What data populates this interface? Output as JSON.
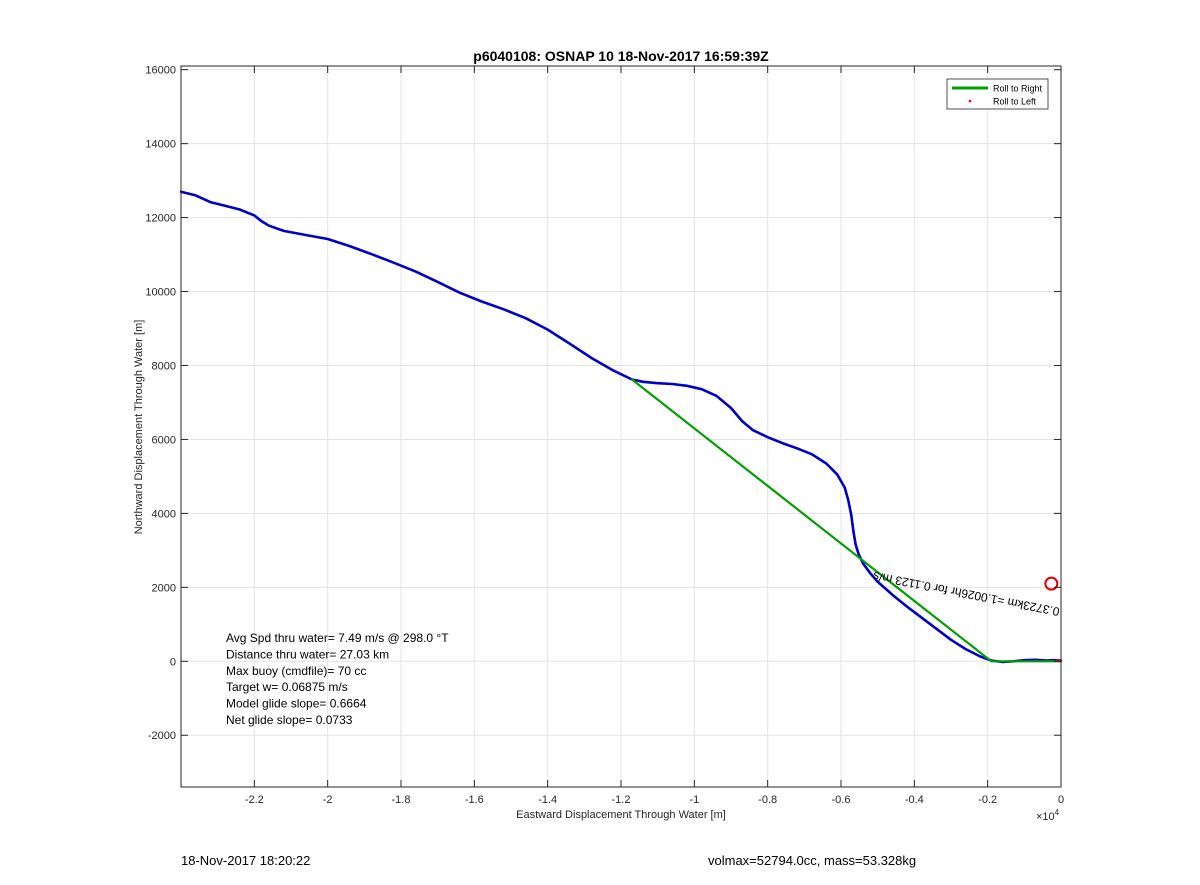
{
  "chart_data": {
    "type": "line",
    "title": "p6040108: OSNAP 10 18-Nov-2017 16:59:39Z",
    "xlabel": "Eastward Displacement Through Water [m]",
    "ylabel": "Northward Displacement Through Water [m]",
    "x_exponent_label": "×10",
    "x_exponent_power": "4",
    "xlim": [
      -2.4,
      0
    ],
    "ylim": [
      -3400,
      16100
    ],
    "x_ticks": [
      -2.2,
      -2,
      -1.8,
      -1.6,
      -1.4,
      -1.2,
      -1,
      -0.8,
      -0.6,
      -0.4,
      -0.2,
      0
    ],
    "x_tick_labels": [
      "-2.2",
      "-2",
      "-1.8",
      "-1.6",
      "-1.4",
      "-1.2",
      "-1",
      "-0.8",
      "-0.6",
      "-0.4",
      "-0.2",
      "0"
    ],
    "y_ticks": [
      -2000,
      0,
      2000,
      4000,
      6000,
      8000,
      10000,
      12000,
      14000,
      16000
    ],
    "y_tick_labels": [
      "-2000",
      "0",
      "2000",
      "4000",
      "6000",
      "8000",
      "10000",
      "12000",
      "14000",
      "16000"
    ],
    "grid": true,
    "legend_position": "top-right",
    "legend": [
      {
        "label": "Roll to Right",
        "color": "#00a000",
        "marker": "line"
      },
      {
        "label": "Roll to Left",
        "color": "#ff0000",
        "marker": "dot"
      }
    ],
    "series": [
      {
        "name": "",
        "color": "#0000c8",
        "x": [
          -2.4,
          -2.36,
          -2.32,
          -2.28,
          -2.24,
          -2.2,
          -2.18,
          -2.16,
          -2.12,
          -2.06,
          -2.0,
          -1.94,
          -1.88,
          -1.82,
          -1.76,
          -1.7,
          -1.64,
          -1.58,
          -1.52,
          -1.46,
          -1.4,
          -1.34,
          -1.28,
          -1.22,
          -1.17,
          -1.14,
          -1.1,
          -1.06,
          -1.02,
          -0.98,
          -0.94,
          -0.9,
          -0.87,
          -0.84,
          -0.8,
          -0.76,
          -0.72,
          -0.68,
          -0.64,
          -0.61,
          -0.59,
          -0.58,
          -0.572,
          -0.566,
          -0.56,
          -0.552,
          -0.54,
          -0.52,
          -0.5,
          -0.46,
          -0.42,
          -0.38,
          -0.34,
          -0.3,
          -0.26,
          -0.22,
          -0.19,
          -0.16,
          -0.13,
          -0.1,
          -0.07,
          -0.04,
          -0.02,
          0.0
        ],
        "y": [
          12700,
          12600,
          12420,
          12320,
          12220,
          12060,
          11900,
          11780,
          11640,
          11530,
          11420,
          11230,
          11010,
          10780,
          10540,
          10260,
          9970,
          9730,
          9520,
          9280,
          8970,
          8590,
          8200,
          7860,
          7620,
          7560,
          7520,
          7500,
          7450,
          7360,
          7180,
          6850,
          6500,
          6250,
          6060,
          5900,
          5760,
          5600,
          5350,
          5050,
          4700,
          4350,
          3950,
          3500,
          3150,
          2900,
          2650,
          2380,
          2150,
          1800,
          1480,
          1180,
          880,
          580,
          330,
          130,
          20,
          -20,
          0,
          30,
          40,
          20,
          30,
          20
        ]
      },
      {
        "name": "Roll to Right",
        "color": "#00a000",
        "x": [
          -1.17,
          -0.19,
          0.0
        ],
        "y": [
          7620,
          0,
          0
        ]
      }
    ],
    "target_marker": {
      "x": -0.01,
      "y": 2100,
      "color": "#e00000"
    },
    "rotated_annotation": "0.3723km =1.0026hr for 0.1123 m/s",
    "rotated_annotation_angle": 11,
    "stats_text": [
      "Avg Spd thru water=  7.49 m/s @ 298.0 °T",
      "Distance thru water= 27.03 km",
      "Max buoy (cmdfile)= 70 cc",
      "Target w= 0.06875 m/s",
      "Model glide slope= 0.6664",
      "Net glide slope= 0.0733"
    ]
  },
  "footer": {
    "left": "18-Nov-2017 18:20:22",
    "right": "volmax=52794.0cc, mass=53.328kg"
  }
}
